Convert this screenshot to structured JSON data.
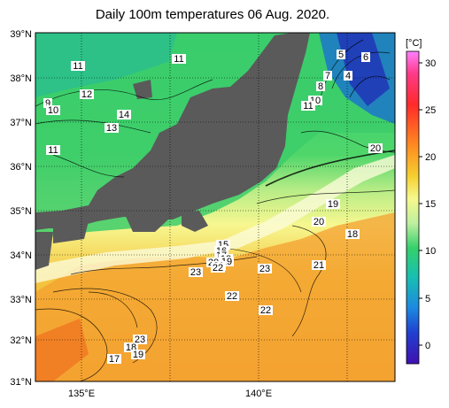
{
  "title": "Daily 100m temperatures 06 Aug. 2020.",
  "lat_labels": [
    "39°N",
    "38°N",
    "37°N",
    "36°N",
    "35°N",
    "34°N",
    "33°N",
    "32°N",
    "31°N"
  ],
  "lon_labels": [
    "135°E",
    "140°E"
  ],
  "colorbar": {
    "unit": "[°C]",
    "ticks": [
      "30",
      "25",
      "20",
      "15",
      "10",
      "5",
      "0"
    ],
    "stops": [
      "#ff66ff",
      "#ff3b3b",
      "#ff7a1f",
      "#f5a623",
      "#f2d22c",
      "#f6f78a",
      "#d4f0a0",
      "#3fd07a",
      "#1eb8a6",
      "#1a8fd6",
      "#1c3fc8",
      "#3a0fb0"
    ]
  },
  "colors": {
    "land": "#555555",
    "sea_cold": "#2bbf7a",
    "sea_warm": "#f5a623"
  },
  "contour_labels": [
    "11",
    "11",
    "12",
    "9",
    "10",
    "14",
    "13",
    "11",
    "5",
    "6",
    "4",
    "7",
    "8",
    "10",
    "11",
    "20",
    "19",
    "20",
    "18",
    "21",
    "15",
    "16",
    "17",
    "18",
    "19",
    "20",
    "21",
    "22",
    "23",
    "23",
    "22",
    "22",
    "23",
    "18",
    "19",
    "17"
  ]
}
